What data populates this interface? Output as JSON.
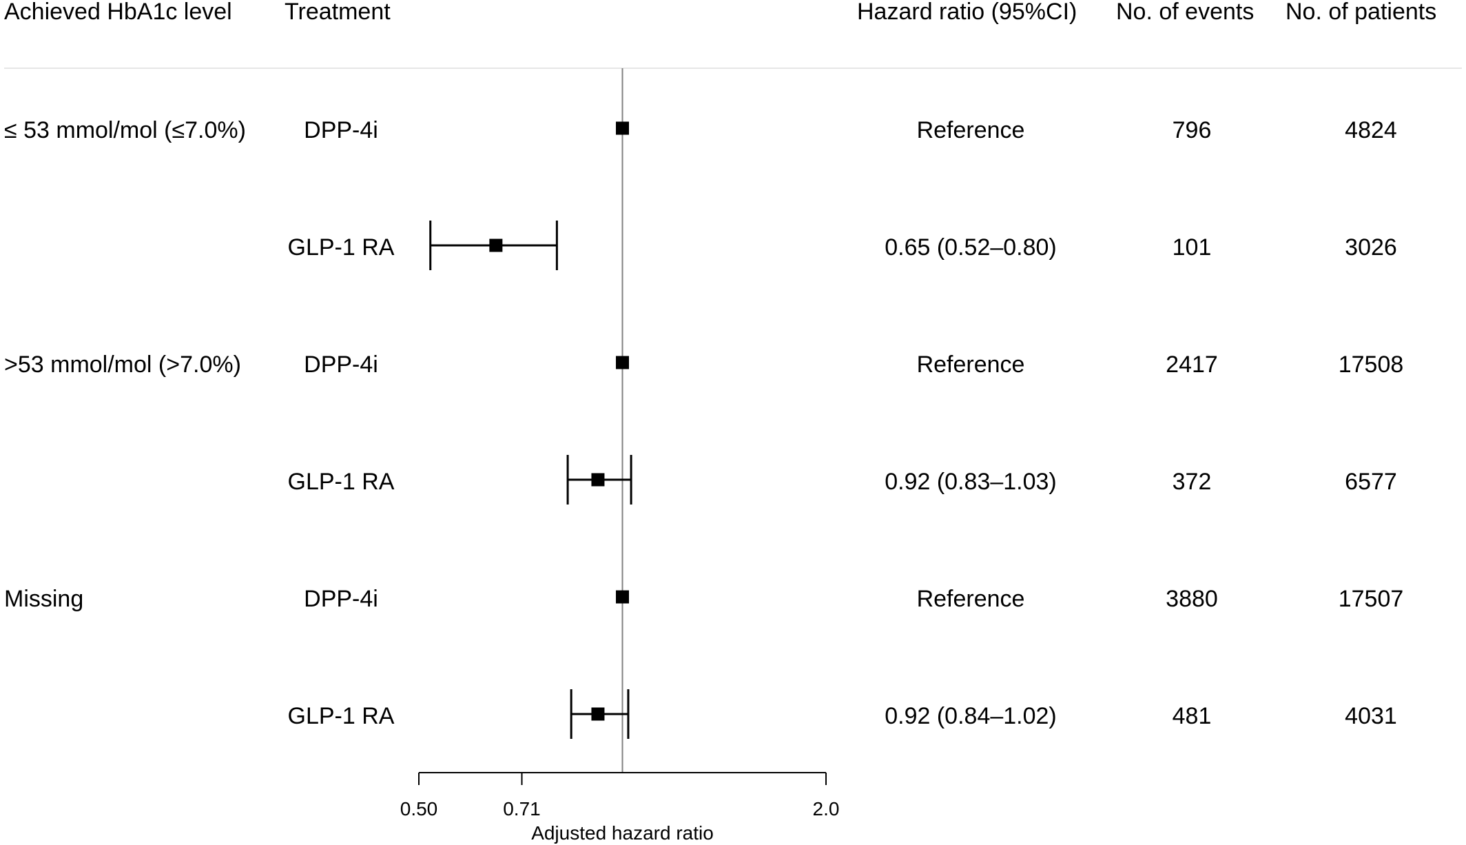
{
  "headers": {
    "group": "Achieved HbA1c level",
    "treatment": "Treatment",
    "hazard_ratio": "Hazard ratio (95%CI)",
    "events": "No. of events",
    "patients": "No. of patients"
  },
  "chart_data": {
    "type": "forest",
    "xlabel": "Adjusted hazard ratio",
    "x_scale": "log",
    "xlim": [
      0.5,
      2.0
    ],
    "xticks": [
      0.5,
      0.71,
      2.0
    ],
    "xtick_labels": [
      "0.50",
      "0.71",
      "2.0"
    ],
    "reference_line": 1.0,
    "rows": [
      {
        "group": "≤ 53 mmol/mol (≤7.0%)",
        "treatment": "DPP-4i",
        "hr": 1.0,
        "lo": null,
        "hi": null,
        "hr_text": "Reference",
        "events": "796",
        "patients": "4824"
      },
      {
        "group": "",
        "treatment": "GLP-1 RA",
        "hr": 0.65,
        "lo": 0.52,
        "hi": 0.8,
        "hr_text": "0.65 (0.52–0.80)",
        "events": "101",
        "patients": "3026"
      },
      {
        "group": ">53 mmol/mol (>7.0%)",
        "treatment": "DPP-4i",
        "hr": 1.0,
        "lo": null,
        "hi": null,
        "hr_text": "Reference",
        "events": "2417",
        "patients": "17508"
      },
      {
        "group": "",
        "treatment": "GLP-1 RA",
        "hr": 0.92,
        "lo": 0.83,
        "hi": 1.03,
        "hr_text": "0.92 (0.83–1.03)",
        "events": "372",
        "patients": "6577"
      },
      {
        "group": "Missing",
        "treatment": "DPP-4i",
        "hr": 1.0,
        "lo": null,
        "hi": null,
        "hr_text": "Reference",
        "events": "3880",
        "patients": "17507"
      },
      {
        "group": "",
        "treatment": "GLP-1 RA",
        "hr": 0.92,
        "lo": 0.84,
        "hi": 1.02,
        "hr_text": "0.92 (0.84–1.02)",
        "events": "481",
        "patients": "4031"
      }
    ]
  },
  "colors": {
    "marker": "#000000",
    "reference_line": "#808080",
    "header_rule": "#e6e6e6"
  }
}
